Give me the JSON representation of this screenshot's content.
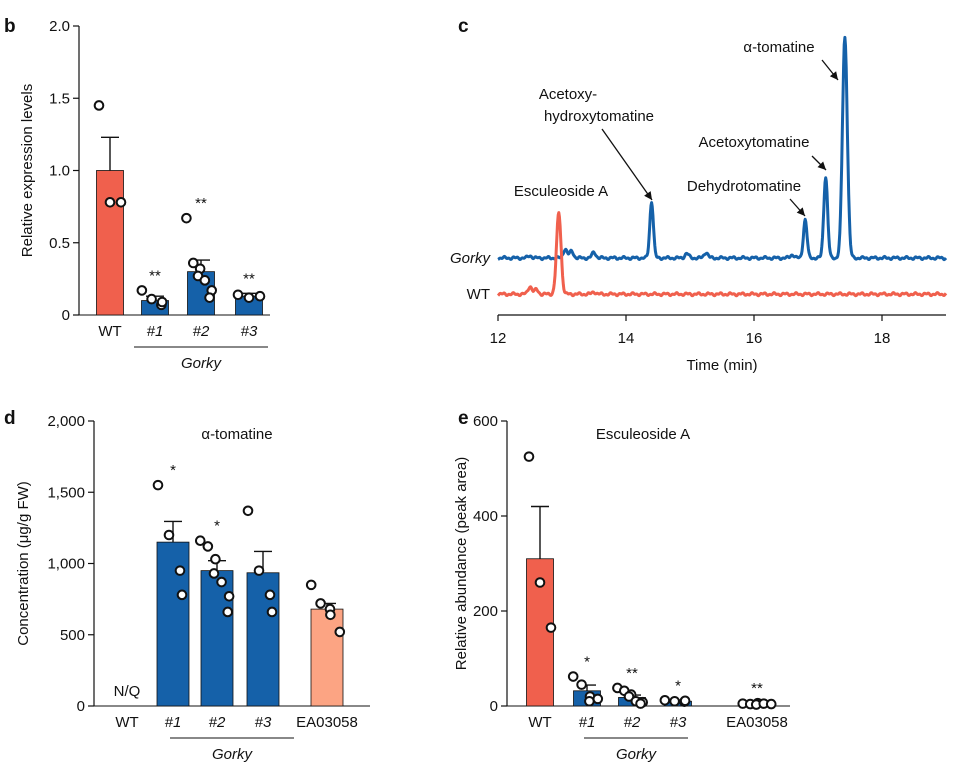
{
  "colors": {
    "wt": "#F0604D",
    "gorky": "#1561A9",
    "ea": "#FCA483",
    "axis": "#111111"
  },
  "chart_data": [
    {
      "panel": "b",
      "type": "bar",
      "title": "",
      "ylabel": "Relative expression levels",
      "xlabel": "",
      "ylim": [
        0,
        2.0
      ],
      "yticks": [
        "0",
        "0.5",
        "1.0",
        "1.5",
        "2.0"
      ],
      "ytick_values": [
        0,
        0.5,
        1.0,
        1.5,
        2.0
      ],
      "group_label": "Gorky",
      "categories": [
        {
          "label": "WT",
          "italic": false,
          "value": 1.0,
          "err": 0.23,
          "color": "wt",
          "stars": "",
          "points": [
            1.45,
            0.78,
            0.78
          ]
        },
        {
          "label": "#1",
          "italic": true,
          "value": 0.1,
          "err": 0.03,
          "color": "gorky",
          "stars": "**",
          "points": [
            0.17,
            0.11,
            0.07,
            0.09
          ]
        },
        {
          "label": "#2",
          "italic": true,
          "value": 0.3,
          "err": 0.08,
          "color": "gorky",
          "stars": "**",
          "points": [
            0.67,
            0.36,
            0.32,
            0.27,
            0.24,
            0.17,
            0.12
          ]
        },
        {
          "label": "#3",
          "italic": true,
          "value": 0.13,
          "err": 0.02,
          "color": "gorky",
          "stars": "**",
          "points": [
            0.14,
            0.12,
            0.13
          ]
        }
      ]
    },
    {
      "panel": "c",
      "type": "line",
      "xlabel": "Time (min)",
      "xlim": [
        12,
        19
      ],
      "xticks": [
        "12",
        "14",
        "16",
        "18"
      ],
      "xtick_values": [
        12,
        14,
        16,
        18
      ],
      "series": [
        {
          "name": "Gorky",
          "italic": true,
          "color": "gorky",
          "baseline": 0.0,
          "peaks": [
            [
              12.5,
              0.02,
              0.03
            ],
            [
              13.05,
              0.08,
              0.03
            ],
            [
              13.15,
              0.06,
              0.03
            ],
            [
              13.5,
              0.05,
              0.03
            ],
            [
              14.4,
              0.5,
              0.028
            ],
            [
              14.95,
              0.04,
              0.03
            ],
            [
              15.25,
              0.05,
              0.03
            ],
            [
              16.6,
              0.03,
              0.03
            ],
            [
              16.8,
              0.34,
              0.028
            ],
            [
              17.12,
              0.72,
              0.03
            ],
            [
              17.42,
              1.95,
              0.038
            ]
          ]
        },
        {
          "name": "WT",
          "italic": false,
          "color": "wt",
          "baseline": -0.32,
          "peaks": [
            [
              12.5,
              0.07,
              0.03
            ],
            [
              12.6,
              0.04,
              0.03
            ],
            [
              12.95,
              0.72,
              0.035
            ],
            [
              13.5,
              0.02,
              0.03
            ]
          ]
        }
      ],
      "annotations": [
        {
          "text": "α-tomatine",
          "target": "α-tomatine peak"
        },
        {
          "text": "Acetoxy-",
          "target": "line 1"
        },
        {
          "text": "hydroxytomatine",
          "target": "line 2"
        },
        {
          "text": "Acetoxytomatine",
          "target": "acetoxytomatine peak"
        },
        {
          "text": "Esculeoside A",
          "target": "WT peak"
        },
        {
          "text": "Dehydrotomatine",
          "target": "dehydrotomatine peak"
        }
      ]
    },
    {
      "panel": "d",
      "type": "bar",
      "title": "α-tomatine",
      "ylabel": "Concentration (μg/g FW)",
      "ylim": [
        0,
        2000
      ],
      "yticks": [
        "0",
        "500",
        "1,000",
        "1,500",
        "2,000"
      ],
      "ytick_values": [
        0,
        500,
        1000,
        1500,
        2000
      ],
      "group_label": "Gorky",
      "nq_label": "N/Q",
      "categories": [
        {
          "label": "WT",
          "italic": false,
          "value": null,
          "color": "wt",
          "stars": "",
          "points": []
        },
        {
          "label": "#1",
          "italic": true,
          "value": 1150,
          "err": 145,
          "color": "gorky",
          "stars": "*",
          "points": [
            1550,
            1200,
            950,
            780
          ]
        },
        {
          "label": "#2",
          "italic": true,
          "value": 950,
          "err": 70,
          "color": "gorky",
          "stars": "*",
          "points": [
            1160,
            1120,
            1030,
            930,
            870,
            770,
            660
          ]
        },
        {
          "label": "#3",
          "italic": true,
          "value": 935,
          "err": 150,
          "color": "gorky",
          "stars": "",
          "points": [
            1370,
            950,
            780,
            660
          ]
        },
        {
          "label": "EA03058",
          "italic": false,
          "value": 680,
          "err": 40,
          "color": "ea",
          "stars": "",
          "points": [
            850,
            720,
            680,
            640,
            520
          ]
        }
      ]
    },
    {
      "panel": "e",
      "type": "bar",
      "title": "Esculeoside A",
      "ylabel": "Relative abundance (peak area)",
      "ylim": [
        0,
        600
      ],
      "yticks": [
        "0",
        "200",
        "400",
        "600"
      ],
      "ytick_values": [
        0,
        200,
        400,
        600
      ],
      "group_label": "Gorky",
      "categories": [
        {
          "label": "WT",
          "italic": false,
          "value": 310,
          "err": 110,
          "color": "wt",
          "stars": "",
          "points": [
            525,
            260,
            165
          ]
        },
        {
          "label": "#1",
          "italic": true,
          "value": 32,
          "err": 12,
          "color": "gorky",
          "stars": "*",
          "points": [
            62,
            45,
            20,
            10,
            15
          ]
        },
        {
          "label": "#2",
          "italic": true,
          "value": 18,
          "err": 5,
          "color": "gorky",
          "stars": "**",
          "points": [
            38,
            32,
            24,
            20,
            10,
            8,
            5
          ]
        },
        {
          "label": "#3",
          "italic": true,
          "value": 10,
          "err": 2,
          "color": "gorky",
          "stars": "*",
          "points": [
            12,
            10,
            9,
            11
          ]
        },
        {
          "label": "EA03058",
          "italic": false,
          "value": 5,
          "err": 1,
          "color": "ea",
          "stars": "**",
          "points": [
            5,
            4,
            6,
            3,
            5,
            4
          ]
        }
      ]
    }
  ]
}
